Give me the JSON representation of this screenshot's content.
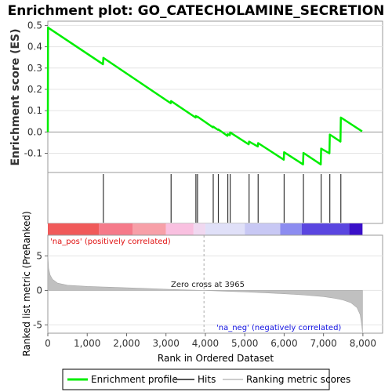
{
  "chart_data": {
    "type": "line",
    "title": "Enrichment plot: GO_CATECHOLAMINE_SECRETION",
    "panels": {
      "enrichment": {
        "ylabel": "Enrichment score (ES)",
        "ylim": [
          -0.19,
          0.52
        ],
        "yticks": [
          -0.1,
          0.0,
          0.1,
          0.2,
          0.3,
          0.4,
          0.5
        ],
        "ytick_labels": [
          "-0.1",
          "0.0",
          "0.1",
          "0.2",
          "0.3",
          "0.4",
          "0.5"
        ],
        "series": [
          {
            "name": "Enrichment profile",
            "color": "#00ee00",
            "points": [
              [
                0,
                0.0
              ],
              [
                5,
                0.49
              ],
              [
                1400,
                0.318
              ],
              [
                1410,
                0.348
              ],
              [
                3120,
                0.135
              ],
              [
                3130,
                0.145
              ],
              [
                3750,
                0.068
              ],
              [
                3760,
                0.075
              ],
              [
                3790,
                0.07
              ],
              [
                3800,
                0.072
              ],
              [
                4190,
                0.022
              ],
              [
                4200,
                0.025
              ],
              [
                4320,
                0.01
              ],
              [
                4330,
                0.012
              ],
              [
                4560,
                -0.018
              ],
              [
                4570,
                -0.01
              ],
              [
                4620,
                -0.015
              ],
              [
                4630,
                -0.002
              ],
              [
                5100,
                -0.058
              ],
              [
                5110,
                -0.045
              ],
              [
                5330,
                -0.068
              ],
              [
                5340,
                -0.052
              ],
              [
                5990,
                -0.13
              ],
              [
                6000,
                -0.095
              ],
              [
                6480,
                -0.152
              ],
              [
                6490,
                -0.098
              ],
              [
                6930,
                -0.152
              ],
              [
                6940,
                -0.078
              ],
              [
                7150,
                -0.1
              ],
              [
                7160,
                -0.012
              ],
              [
                7430,
                -0.045
              ],
              [
                7440,
                0.068
              ],
              [
                7980,
                0.003
              ]
            ]
          }
        ]
      },
      "hits": {
        "name": "Hits",
        "positions": [
          1410,
          3130,
          3760,
          3800,
          4200,
          4330,
          4570,
          4630,
          5110,
          5340,
          6000,
          6490,
          6940,
          7160,
          7440
        ]
      },
      "ranked_metric": {
        "name": "Ranking metric scores",
        "ylabel": "Ranked list metric (PreRanked)",
        "ylim": [
          -6.2,
          8.0
        ],
        "yticks": [
          -5,
          0,
          5
        ],
        "ytick_labels": [
          "-5",
          "0",
          "5"
        ],
        "zero_cross": 3965,
        "zero_cross_label": "Zero cross at 3965",
        "pos_label": "'na_pos' (positively correlated)",
        "neg_label": "'na_neg' (negatively correlated)",
        "profile": [
          [
            0,
            5.2
          ],
          [
            20,
            3.2
          ],
          [
            60,
            2.2
          ],
          [
            120,
            1.6
          ],
          [
            250,
            1.05
          ],
          [
            500,
            0.75
          ],
          [
            1000,
            0.58
          ],
          [
            1500,
            0.48
          ],
          [
            2000,
            0.38
          ],
          [
            2500,
            0.28
          ],
          [
            3000,
            0.17
          ],
          [
            3500,
            0.07
          ],
          [
            3965,
            0.0
          ],
          [
            4500,
            -0.12
          ],
          [
            5000,
            -0.22
          ],
          [
            5500,
            -0.34
          ],
          [
            6000,
            -0.48
          ],
          [
            6500,
            -0.66
          ],
          [
            7000,
            -0.9
          ],
          [
            7300,
            -1.15
          ],
          [
            7500,
            -1.4
          ],
          [
            7700,
            -1.8
          ],
          [
            7850,
            -2.5
          ],
          [
            7930,
            -3.5
          ],
          [
            7970,
            -5.0
          ],
          [
            7990,
            -6.1
          ]
        ]
      }
    },
    "xlabel": "Rank in Ordered Dataset",
    "xlim": [
      0,
      8500
    ],
    "xticks": [
      0,
      1000,
      2000,
      3000,
      4000,
      5000,
      6000,
      7000,
      8000
    ],
    "xtick_labels": [
      "0",
      "1,000",
      "2,000",
      "3,000",
      "4,000",
      "5,000",
      "6,000",
      "7,000",
      "8,000"
    ],
    "color_bar": [
      {
        "from": 0,
        "to": 1300,
        "color": "#f05a5a"
      },
      {
        "from": 1300,
        "to": 2150,
        "color": "#f57a8a"
      },
      {
        "from": 2150,
        "to": 3000,
        "color": "#f7a0a8"
      },
      {
        "from": 3000,
        "to": 3700,
        "color": "#f9c0e0"
      },
      {
        "from": 3700,
        "to": 4000,
        "color": "#f0d8f0"
      },
      {
        "from": 4000,
        "to": 5000,
        "color": "#e0e0f8"
      },
      {
        "from": 5000,
        "to": 5900,
        "color": "#c8c8f4"
      },
      {
        "from": 5900,
        "to": 6450,
        "color": "#8c8cf0"
      },
      {
        "from": 6450,
        "to": 7650,
        "color": "#5a46e0"
      },
      {
        "from": 7650,
        "to": 7990,
        "color": "#3a10c8"
      }
    ],
    "legend": {
      "placement": "bottom",
      "entries": [
        {
          "label": "Enrichment profile",
          "color": "#00ee00",
          "kind": "line"
        },
        {
          "label": "Hits",
          "color": "#555555",
          "kind": "line"
        },
        {
          "label": "Ranking metric scores",
          "color": "#cccccc",
          "kind": "line"
        }
      ]
    }
  }
}
